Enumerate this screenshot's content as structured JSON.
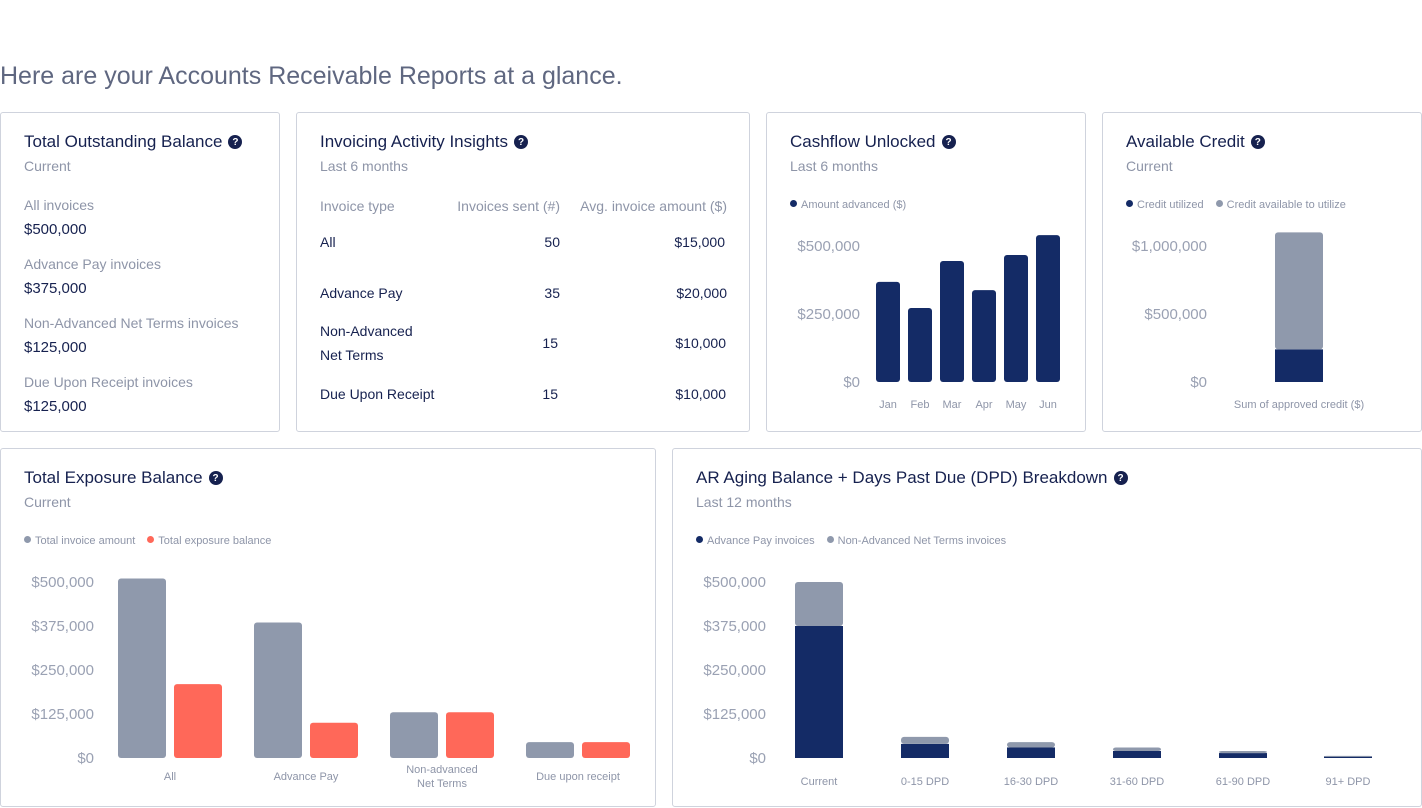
{
  "page": {
    "heading": "Here are your Accounts Receivable Reports at a glance."
  },
  "colors": {
    "navy": "#142b66",
    "gray": "#8f99ac",
    "red": "#ff6859"
  },
  "outstanding": {
    "title": "Total Outstanding Balance",
    "subtitle": "Current",
    "items": [
      {
        "label": "All invoices",
        "value": "$500,000"
      },
      {
        "label": "Advance Pay invoices",
        "value": "$375,000"
      },
      {
        "label": "Non-Advanced Net Terms invoices",
        "value": "$125,000"
      },
      {
        "label": "Due Upon Receipt invoices",
        "value": "$125,000"
      }
    ]
  },
  "invoicing": {
    "title": "Invoicing Activity Insights",
    "subtitle": "Last 6 months",
    "headers": [
      "Invoice type",
      "Invoices sent (#)",
      "Avg. invoice amount ($)"
    ],
    "rows": [
      {
        "type": "All",
        "sent": "50",
        "avg": "$15,000"
      },
      {
        "type": "Advance Pay",
        "sent": "35",
        "avg": "$20,000"
      },
      {
        "type": "Non-Advanced",
        "type2": "Net Terms",
        "sent": "15",
        "avg": "$10,000"
      },
      {
        "type": "Due Upon Receipt",
        "sent": "15",
        "avg": "$10,000"
      }
    ]
  },
  "chart_data": [
    {
      "id": "cashflow",
      "title": "Cashflow Unlocked",
      "subtitle": "Last 6 months",
      "type": "bar",
      "legend": [
        "Amount advanced ($)"
      ],
      "categories": [
        "Jan",
        "Feb",
        "Mar",
        "Apr",
        "May",
        "Jun"
      ],
      "series": [
        {
          "name": "Amount advanced ($)",
          "values": [
            368000,
            272000,
            445000,
            338000,
            467000,
            540000
          ]
        }
      ],
      "ylim": [
        0,
        500000
      ],
      "yticks": [
        "$0",
        "$250,000",
        "$500,000"
      ]
    },
    {
      "id": "credit",
      "title": "Available Credit",
      "subtitle": "Current",
      "type": "bar",
      "stacked": true,
      "legend": [
        "Credit utilized",
        "Credit available to utilize"
      ],
      "categories": [
        "Sum of approved credit ($)"
      ],
      "series": [
        {
          "name": "Credit utilized",
          "values": [
            240000
          ]
        },
        {
          "name": "Credit available to utilize",
          "values": [
            860000
          ]
        }
      ],
      "ylim": [
        0,
        1000000
      ],
      "yticks": [
        "$0",
        "$500,000",
        "$1,000,000"
      ]
    },
    {
      "id": "exposure",
      "title": "Total Exposure Balance",
      "subtitle": "Current",
      "type": "bar",
      "legend": [
        "Total invoice amount",
        "Total exposure balance"
      ],
      "categories": [
        "All",
        "Advance Pay",
        "Non-advanced\nNet Terms",
        "Due upon receipt"
      ],
      "series": [
        {
          "name": "Total invoice amount",
          "values": [
            510000,
            385000,
            130000,
            45000
          ]
        },
        {
          "name": "Total exposure balance",
          "values": [
            210000,
            100000,
            130000,
            45000
          ]
        }
      ],
      "ylim": [
        0,
        500000
      ],
      "yticks": [
        "$0",
        "$125,000",
        "$250,000",
        "$375,000",
        "$500,000"
      ]
    },
    {
      "id": "aging",
      "title": "AR Aging Balance + Days Past Due (DPD) Breakdown",
      "subtitle": "Last 12 months",
      "type": "bar",
      "stacked": true,
      "legend": [
        "Advance Pay invoices",
        "Non-Advanced Net Terms invoices"
      ],
      "categories": [
        "Current",
        "0-15 DPD",
        "16-30 DPD",
        "31-60 DPD",
        "61-90 DPD",
        "91+ DPD"
      ],
      "series": [
        {
          "name": "Advance Pay invoices",
          "values": [
            375000,
            40000,
            30000,
            20000,
            14000,
            4000
          ]
        },
        {
          "name": "Non-Advanced Net Terms invoices",
          "values": [
            125000,
            20000,
            15000,
            10000,
            6000,
            2000
          ]
        }
      ],
      "ylim": [
        0,
        500000
      ],
      "yticks": [
        "$0",
        "$125,000",
        "$250,000",
        "$375,000",
        "$500,000"
      ]
    }
  ]
}
